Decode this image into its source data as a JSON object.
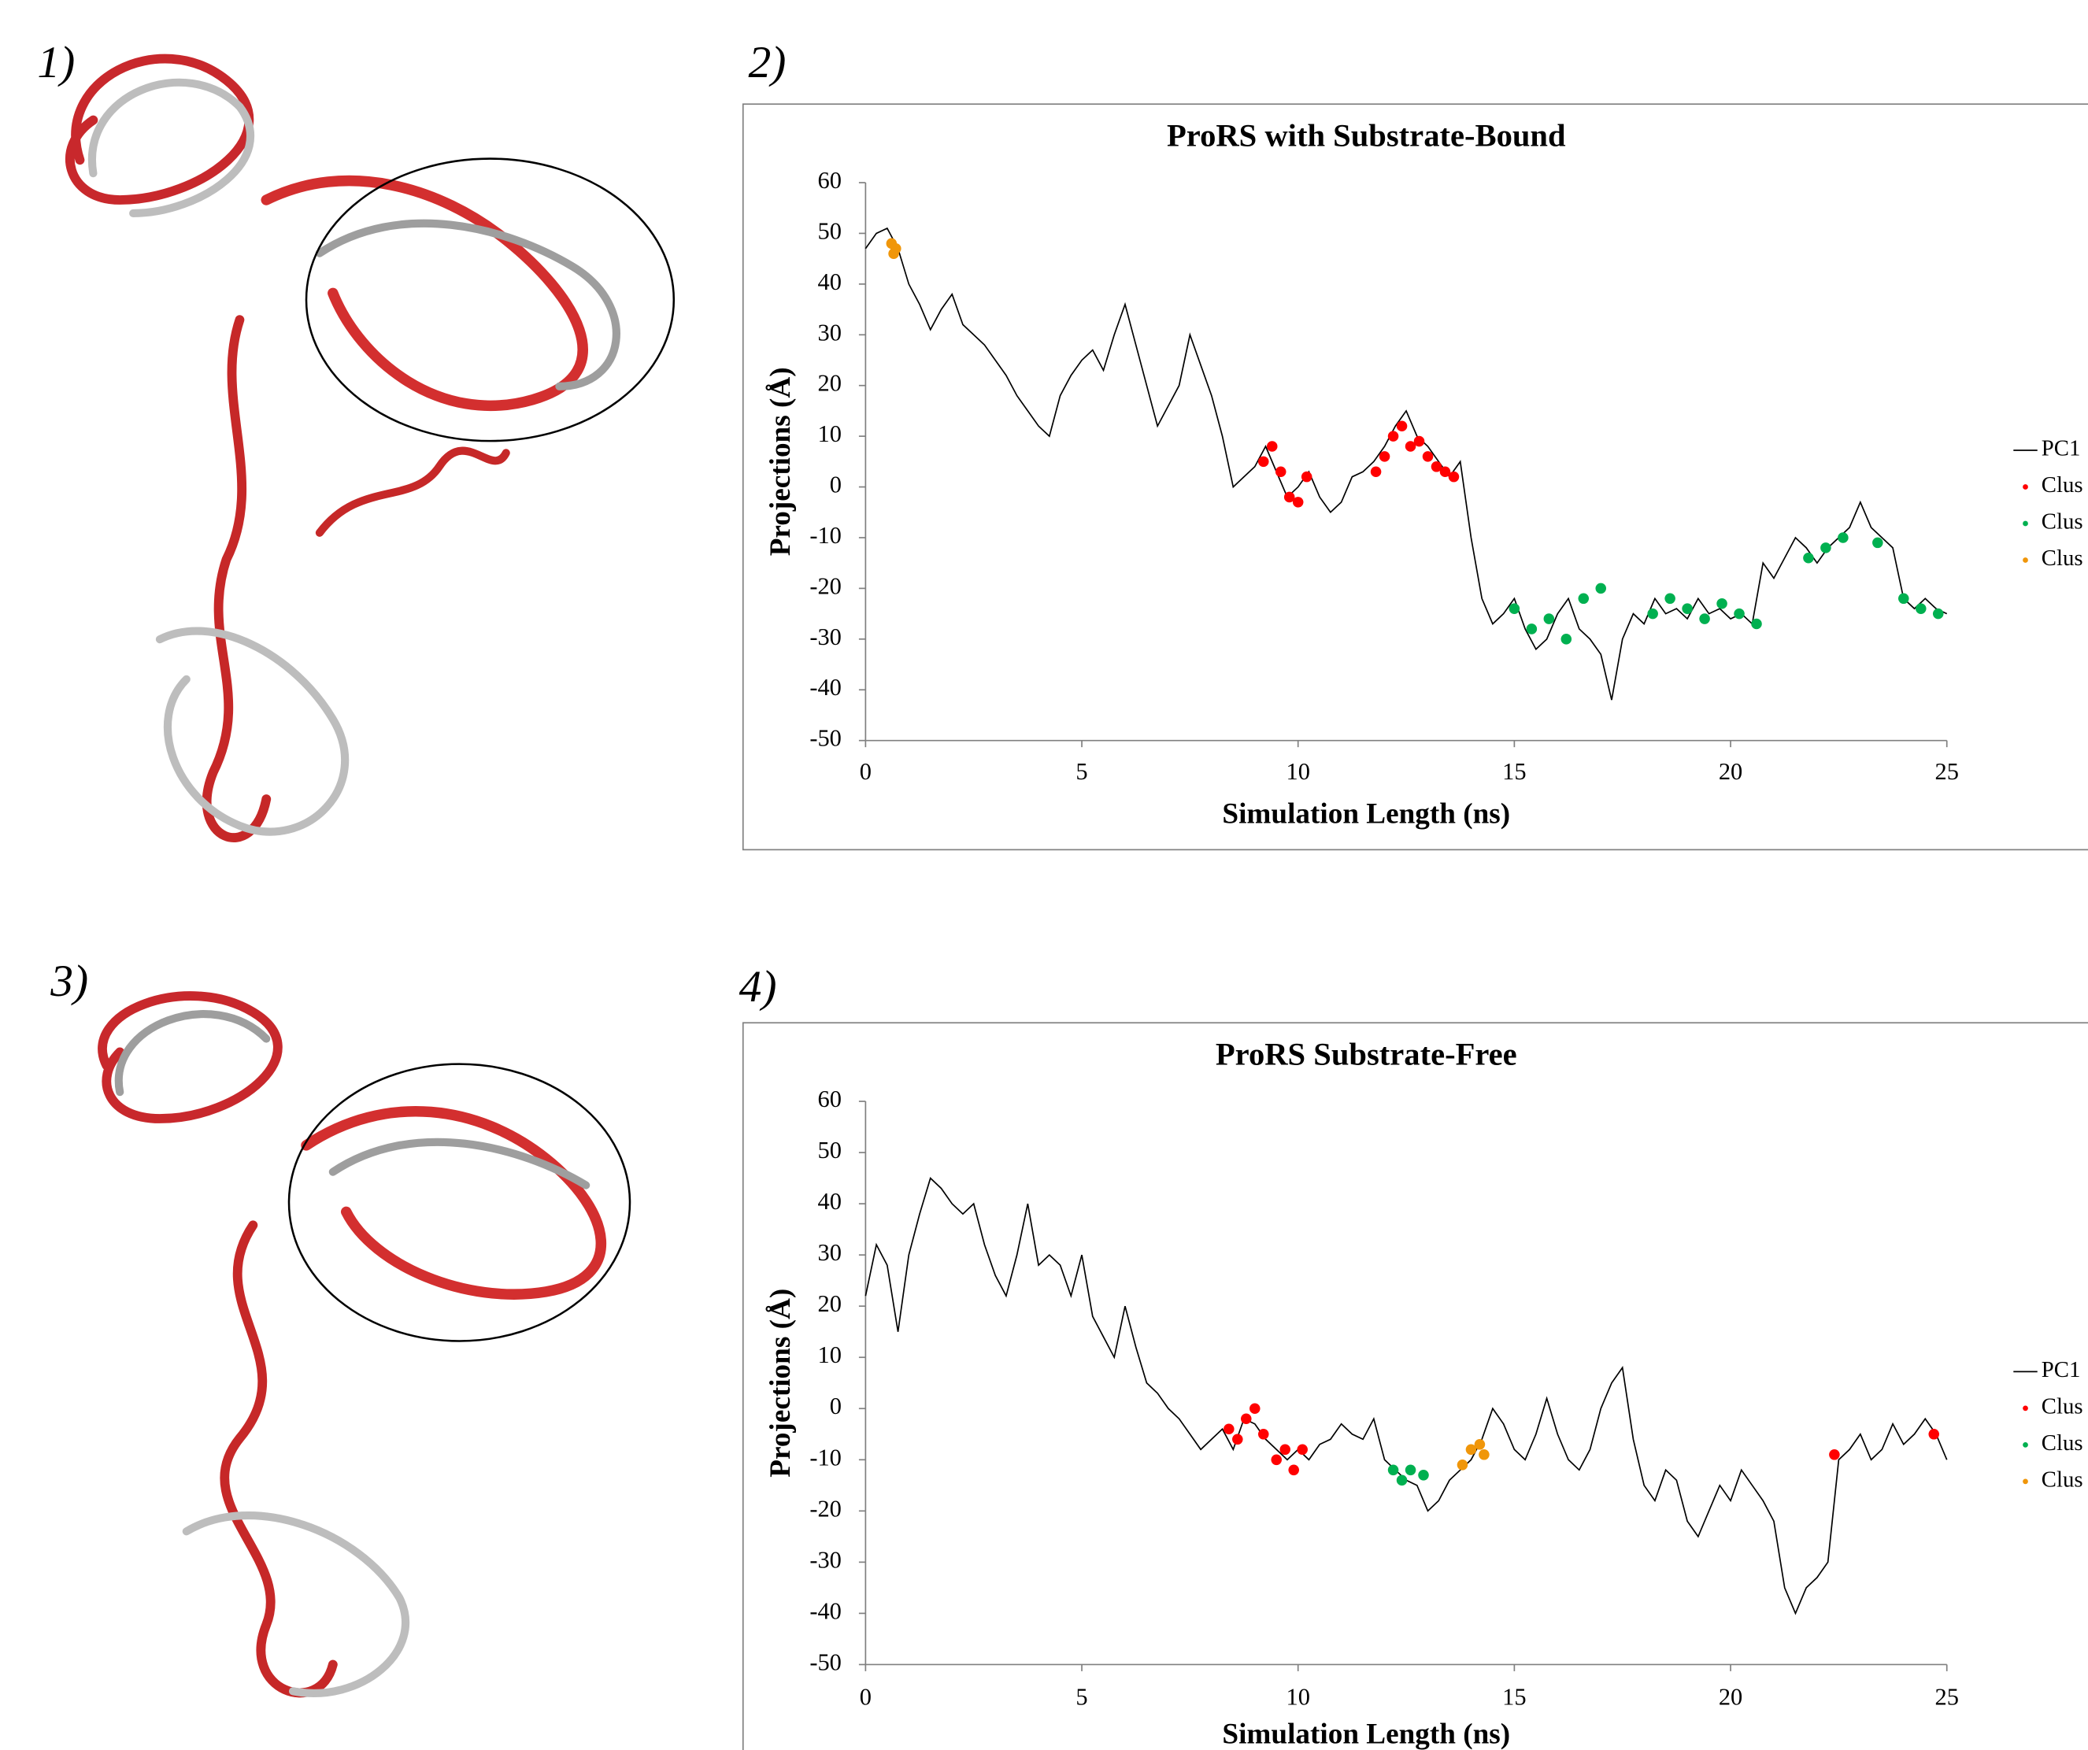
{
  "panels": [
    "1)",
    "2)",
    "3)",
    "4)"
  ],
  "chart_data": [
    {
      "type": "line",
      "title": "ProRS with Substrate-Bound",
      "x_label": "Simulation Length (ns)",
      "y_label": "Projections (Å)",
      "xlim": [
        0,
        25
      ],
      "xticks": [
        0,
        5,
        10,
        15,
        20,
        25
      ],
      "ylim": [
        -50,
        60
      ],
      "yticks": [
        -50,
        -40,
        -30,
        -20,
        -10,
        0,
        10,
        20,
        30,
        40,
        50,
        60
      ],
      "series": [
        {
          "name": "PC1",
          "color": "#000000",
          "style": "line",
          "x": [
            0,
            0.25,
            0.5,
            0.75,
            1,
            1.25,
            1.5,
            1.75,
            2,
            2.25,
            2.5,
            2.75,
            3,
            3.25,
            3.5,
            3.75,
            4,
            4.25,
            4.5,
            4.75,
            5,
            5.25,
            5.5,
            5.75,
            6,
            6.25,
            6.5,
            6.75,
            7,
            7.25,
            7.5,
            7.75,
            8,
            8.25,
            8.5,
            8.75,
            9,
            9.25,
            9.5,
            9.75,
            10,
            10.25,
            10.5,
            10.75,
            11,
            11.25,
            11.5,
            11.75,
            12,
            12.25,
            12.5,
            12.75,
            13,
            13.25,
            13.5,
            13.75,
            14,
            14.25,
            14.5,
            14.75,
            15,
            15.25,
            15.5,
            15.75,
            16,
            16.25,
            16.5,
            16.75,
            17,
            17.25,
            17.5,
            17.75,
            18,
            18.25,
            18.5,
            18.75,
            19,
            19.25,
            19.5,
            19.75,
            20,
            20.25,
            20.5,
            20.75,
            21,
            21.25,
            21.5,
            21.75,
            22,
            22.25,
            22.5,
            22.75,
            23,
            23.25,
            23.5,
            23.75,
            24,
            24.25,
            24.5,
            24.75,
            25
          ],
          "values": [
            47,
            50,
            51,
            47,
            40,
            36,
            31,
            35,
            38,
            32,
            30,
            28,
            25,
            22,
            18,
            15,
            12,
            10,
            18,
            22,
            25,
            27,
            23,
            30,
            36,
            28,
            20,
            12,
            16,
            20,
            30,
            24,
            18,
            10,
            0,
            2,
            4,
            8,
            3,
            -2,
            0,
            3,
            -2,
            -5,
            -3,
            2,
            3,
            5,
            8,
            12,
            15,
            10,
            8,
            5,
            2,
            5,
            -10,
            -22,
            -27,
            -25,
            -22,
            -28,
            -32,
            -30,
            -25,
            -22,
            -28,
            -30,
            -33,
            -42,
            -30,
            -25,
            -27,
            -22,
            -25,
            -24,
            -26,
            -22,
            -25,
            -24,
            -26,
            -25,
            -27,
            -15,
            -18,
            -14,
            -10,
            -12,
            -15,
            -12,
            -10,
            -8,
            -3,
            -8,
            -10,
            -12,
            -22,
            -24,
            -22,
            -24,
            -25
          ]
        },
        {
          "name": "Clus",
          "color": "#ff0000",
          "style": "dots",
          "x": [
            9.2,
            9.4,
            9.6,
            9.8,
            10.0,
            10.2,
            11.8,
            12.0,
            12.2,
            12.4,
            12.6,
            12.8,
            13.0,
            13.2,
            13.4,
            13.6
          ],
          "values": [
            5,
            8,
            3,
            -2,
            -3,
            2,
            3,
            6,
            10,
            12,
            8,
            9,
            6,
            4,
            3,
            2
          ]
        },
        {
          "name": "Clus",
          "color": "#00b050",
          "style": "dots",
          "x": [
            15,
            15.4,
            15.8,
            16.2,
            16.6,
            17,
            18.2,
            18.6,
            19,
            19.4,
            19.8,
            20.2,
            20.6,
            21.8,
            22.2,
            22.6,
            23.4,
            24,
            24.4,
            24.8
          ],
          "values": [
            -24,
            -28,
            -26,
            -30,
            -22,
            -20,
            -25,
            -22,
            -24,
            -26,
            -23,
            -25,
            -27,
            -14,
            -12,
            -10,
            -11,
            -22,
            -24,
            -25
          ]
        },
        {
          "name": "Clus",
          "color": "#f0960a",
          "style": "dots",
          "x": [
            0.6,
            0.65,
            0.7
          ],
          "values": [
            48,
            46,
            47
          ]
        }
      ]
    },
    {
      "type": "line",
      "title": "ProRS Substrate-Free",
      "x_label": "Simulation Length (ns)",
      "y_label": "Projections (Å)",
      "xlim": [
        0,
        25
      ],
      "xticks": [
        0,
        5,
        10,
        15,
        20,
        25
      ],
      "ylim": [
        -50,
        60
      ],
      "yticks": [
        -50,
        -40,
        -30,
        -20,
        -10,
        0,
        10,
        20,
        30,
        40,
        50,
        60
      ],
      "series": [
        {
          "name": "PC1",
          "color": "#000000",
          "style": "line",
          "x": [
            0,
            0.25,
            0.5,
            0.75,
            1,
            1.25,
            1.5,
            1.75,
            2,
            2.25,
            2.5,
            2.75,
            3,
            3.25,
            3.5,
            3.75,
            4,
            4.25,
            4.5,
            4.75,
            5,
            5.25,
            5.5,
            5.75,
            6,
            6.25,
            6.5,
            6.75,
            7,
            7.25,
            7.5,
            7.75,
            8,
            8.25,
            8.5,
            8.75,
            9,
            9.25,
            9.5,
            9.75,
            10,
            10.25,
            10.5,
            10.75,
            11,
            11.25,
            11.5,
            11.75,
            12,
            12.25,
            12.5,
            12.75,
            13,
            13.25,
            13.5,
            13.75,
            14,
            14.25,
            14.5,
            14.75,
            15,
            15.25,
            15.5,
            15.75,
            16,
            16.25,
            16.5,
            16.75,
            17,
            17.25,
            17.5,
            17.75,
            18,
            18.25,
            18.5,
            18.75,
            19,
            19.25,
            19.5,
            19.75,
            20,
            20.25,
            20.5,
            20.75,
            21,
            21.25,
            21.5,
            21.75,
            22,
            22.25,
            22.5,
            22.75,
            23,
            23.25,
            23.5,
            23.75,
            24,
            24.25,
            24.5,
            24.75,
            25
          ],
          "values": [
            22,
            32,
            28,
            15,
            30,
            38,
            45,
            43,
            40,
            38,
            40,
            32,
            26,
            22,
            30,
            40,
            28,
            30,
            28,
            22,
            30,
            18,
            14,
            10,
            20,
            12,
            5,
            3,
            0,
            -2,
            -5,
            -8,
            -6,
            -4,
            -8,
            -2,
            -3,
            -6,
            -8,
            -10,
            -8,
            -10,
            -7,
            -6,
            -3,
            -5,
            -6,
            -2,
            -10,
            -12,
            -14,
            -15,
            -20,
            -18,
            -14,
            -12,
            -10,
            -6,
            0,
            -3,
            -8,
            -10,
            -5,
            2,
            -5,
            -10,
            -12,
            -8,
            0,
            5,
            8,
            -6,
            -15,
            -18,
            -12,
            -14,
            -22,
            -25,
            -20,
            -15,
            -18,
            -12,
            -15,
            -18,
            -22,
            -35,
            -40,
            -35,
            -33,
            -30,
            -10,
            -8,
            -5,
            -10,
            -8,
            -3,
            -7,
            -5,
            -2,
            -5,
            -10
          ]
        },
        {
          "name": "Clus",
          "color": "#ff0000",
          "style": "dots",
          "x": [
            8.4,
            8.6,
            8.8,
            9.0,
            9.2,
            9.5,
            9.7,
            9.9,
            10.1,
            22.4,
            24.7
          ],
          "values": [
            -4,
            -6,
            -2,
            0,
            -5,
            -10,
            -8,
            -12,
            -8,
            -9,
            -5
          ]
        },
        {
          "name": "Clus",
          "color": "#00b050",
          "style": "dots",
          "x": [
            12.2,
            12.4,
            12.6,
            12.9
          ],
          "values": [
            -12,
            -14,
            -12,
            -13
          ]
        },
        {
          "name": "Clus",
          "color": "#f0960a",
          "style": "dots",
          "x": [
            13.8,
            14.0,
            14.2,
            14.3
          ],
          "values": [
            -11,
            -8,
            -7,
            -9
          ]
        }
      ]
    }
  ]
}
